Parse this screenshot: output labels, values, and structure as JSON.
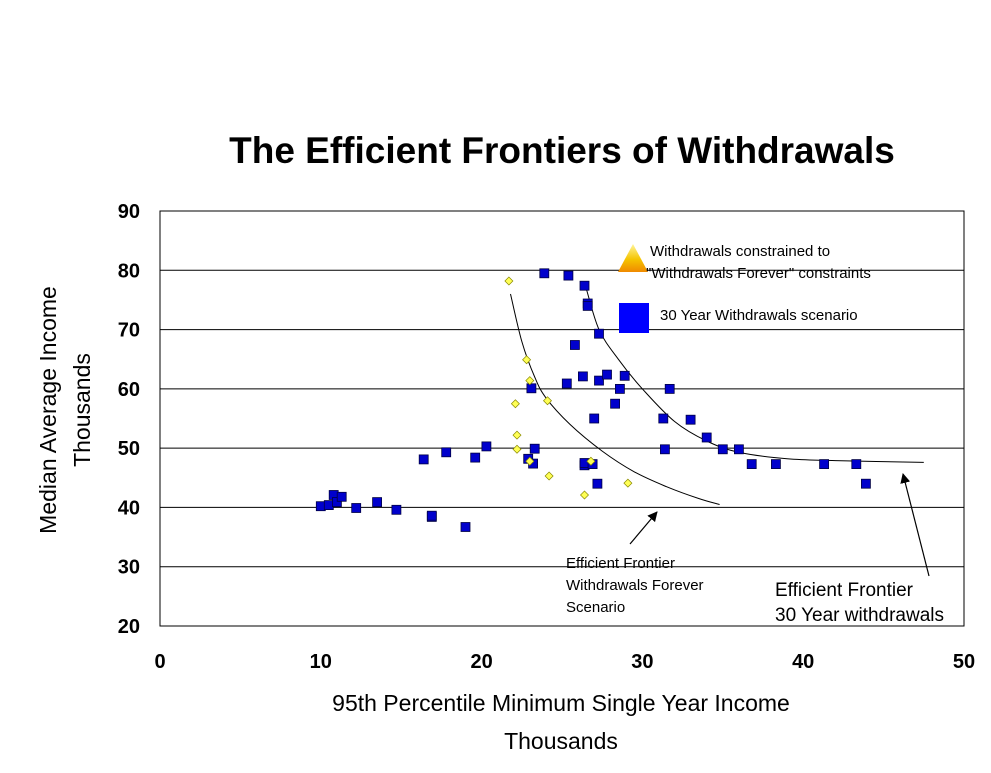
{
  "chart_data": {
    "type": "scatter",
    "title": "The Efficient Frontiers of Withdrawals",
    "xlabel": "95th Percentile Minimum Single Year Income",
    "xlabel_unit": "Thousands",
    "ylabel": "Median Average Income",
    "ylabel_unit": "Thousands",
    "xlim": [
      0,
      50
    ],
    "ylim": [
      20,
      90
    ],
    "x_ticks": [
      "0",
      "10",
      "20",
      "30",
      "40",
      "50"
    ],
    "y_ticks": [
      "20",
      "30",
      "40",
      "50",
      "60",
      "70",
      "80",
      "90"
    ],
    "grid": "horizontal",
    "legend": [
      {
        "label_line1": "Withdrawals constrained to",
        "label_line2": "\"Withdrawals Forever\" constraints",
        "marker": "triangle",
        "color": "#F5C400"
      },
      {
        "label_line1": "30 Year Withdrawals scenario",
        "label_line2": "",
        "marker": "square",
        "color": "#0000FF"
      }
    ],
    "series": [
      {
        "marker": "square",
        "color": "#0000CC",
        "points": [
          [
            10.0,
            40.2
          ],
          [
            10.5,
            40.4
          ],
          [
            10.8,
            42.1
          ],
          [
            11.0,
            40.9
          ],
          [
            11.3,
            41.8
          ],
          [
            12.2,
            39.9
          ],
          [
            13.5,
            40.9
          ],
          [
            14.7,
            39.6
          ],
          [
            16.9,
            38.4
          ],
          [
            16.9,
            38.6
          ],
          [
            19.0,
            36.7
          ],
          [
            16.4,
            48.1
          ],
          [
            17.8,
            49.3
          ],
          [
            19.6,
            48.4
          ],
          [
            20.3,
            50.3
          ],
          [
            22.9,
            48.2
          ],
          [
            23.2,
            47.4
          ],
          [
            23.3,
            49.9
          ],
          [
            23.1,
            60.1
          ],
          [
            23.9,
            79.5
          ],
          [
            25.4,
            79.1
          ],
          [
            25.3,
            60.9
          ],
          [
            25.8,
            67.4
          ],
          [
            26.3,
            62.1
          ],
          [
            26.4,
            77.4
          ],
          [
            26.6,
            74.4
          ],
          [
            26.6,
            74.0
          ],
          [
            27.0,
            55.0
          ],
          [
            27.3,
            69.3
          ],
          [
            27.3,
            61.4
          ],
          [
            27.8,
            62.4
          ],
          [
            28.3,
            57.5
          ],
          [
            28.6,
            60.0
          ],
          [
            28.9,
            62.2
          ],
          [
            27.2,
            44.0
          ],
          [
            26.4,
            47.1
          ],
          [
            26.4,
            47.5
          ],
          [
            26.9,
            47.3
          ],
          [
            31.3,
            55.0
          ],
          [
            31.4,
            49.8
          ],
          [
            31.7,
            60.0
          ],
          [
            33.0,
            54.8
          ],
          [
            34.0,
            51.8
          ],
          [
            35.0,
            49.8
          ],
          [
            36.0,
            49.8
          ],
          [
            36.8,
            47.3
          ],
          [
            38.3,
            47.3
          ],
          [
            41.3,
            47.3
          ],
          [
            43.3,
            47.3
          ],
          [
            43.9,
            44.0
          ]
        ]
      },
      {
        "marker": "diamond",
        "color": "#FFFF55",
        "points": [
          [
            21.7,
            78.2
          ],
          [
            22.8,
            64.9
          ],
          [
            23.0,
            61.4
          ],
          [
            22.1,
            57.5
          ],
          [
            24.1,
            58.0
          ],
          [
            22.2,
            52.2
          ],
          [
            22.2,
            49.8
          ],
          [
            23.0,
            47.8
          ],
          [
            24.2,
            45.3
          ],
          [
            26.4,
            42.1
          ],
          [
            26.8,
            47.8
          ],
          [
            29.1,
            44.1
          ]
        ]
      }
    ],
    "curves": [
      {
        "name": "Efficient Frontier Withdrawals Forever",
        "points": [
          [
            21.8,
            76
          ],
          [
            22.5,
            68
          ],
          [
            23.3,
            62
          ],
          [
            24.0,
            58.5
          ],
          [
            25.5,
            54
          ],
          [
            27.5,
            49.5
          ],
          [
            29.5,
            46
          ],
          [
            31.5,
            43.5
          ],
          [
            33.5,
            41.5
          ],
          [
            34.8,
            40.5
          ]
        ]
      },
      {
        "name": "Efficient Frontier 30 Year withdrawals",
        "points": [
          [
            26.5,
            77
          ],
          [
            27.3,
            70
          ],
          [
            28.5,
            65
          ],
          [
            30.0,
            60
          ],
          [
            32.0,
            54.5
          ],
          [
            34.0,
            51.2
          ],
          [
            36.0,
            49.3
          ],
          [
            39.0,
            48.2
          ],
          [
            42.0,
            47.9
          ],
          [
            47.5,
            47.6
          ]
        ]
      }
    ],
    "annotations": [
      {
        "lines": [
          "Efficient Frontier",
          "Withdrawals Forever",
          "Scenario"
        ],
        "arrow_from": [
          26.8,
          40.1
        ],
        "arrow_to": [
          31.0,
          45.3
        ]
      },
      {
        "lines": [
          "Efficient Frontier",
          "30 Year withdrawals"
        ],
        "arrow_from": [
          48.3,
          23.8
        ],
        "arrow_to": [
          46.0,
          45.7
        ]
      }
    ]
  }
}
